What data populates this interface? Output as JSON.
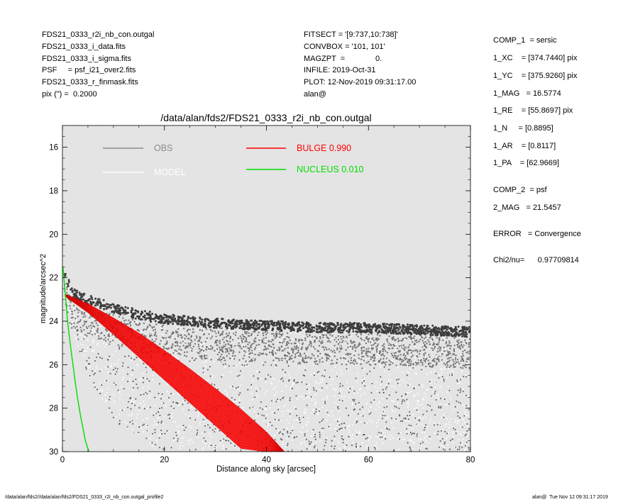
{
  "header_left": [
    "FDS21_0333_r2i_nb_con.outgal",
    "FDS21_0333_i_data.fits",
    "FDS21_0333_i_sigma.fits",
    "PSF     = psf_i21_over2.fits",
    "FDS21_0333_r_finmask.fits",
    "pix (\") =  0.2000"
  ],
  "header_mid": [
    "FITSECT = '[9:737,10:738]'",
    "CONVBOX = '101, 101'",
    "MAGZPT  =              0.",
    "INFILE: 2019-Oct-31",
    "PLOT: 12-Nov-2019 09:31:17.00",
    "alan@"
  ],
  "params": [
    "COMP_1  = sersic",
    "1_XC    = [374.7440] pix",
    "1_YC    = [375.9260] pix",
    "1_MAG   = 16.5774",
    "1_RE    = [55.8697] pix",
    "1_N     = [0.8895]",
    "1_AR    = [0.8117]",
    "1_PA    = [62.9669]",
    "COMP_2  = psf",
    "2_MAG   = 21.5457",
    "ERROR   = Convergence",
    "Chi2/nu=      0.97709814"
  ],
  "footer_left": "/data/alan/fds2//data/alan/fds2/FDS21_0333_r2i_nb_con.outgal_profile2",
  "footer_right": "alan@  Tue Nov 12 09:31:17 2019",
  "chart_data": {
    "type": "scatter",
    "title": "/data/alan/fds2/FDS21_0333_r2i_nb_con.outgal",
    "xlabel": "Distance along sky [arcsec]",
    "ylabel": "magnitude/arcsec^2",
    "xlim": [
      0,
      80
    ],
    "ylim": [
      30,
      15
    ],
    "y_inverted": true,
    "xticks": [
      0,
      20,
      40,
      60,
      80
    ],
    "yticks": [
      16,
      18,
      20,
      22,
      24,
      26,
      28,
      30
    ],
    "background": "#e4e4e4",
    "legend": [
      {
        "name": "OBS",
        "color": "#8c8c8c"
      },
      {
        "name": "MODEL",
        "color": "#ffffff"
      },
      {
        "name": "BULGE  0.990",
        "color": "#ff0000"
      },
      {
        "name": "NUCLEUS  0.010",
        "color": "#00dd00"
      }
    ],
    "series": [
      {
        "name": "OBS",
        "kind": "scatter",
        "color": "#3c3c3c",
        "description_points": {
          "upper_envelope": {
            "x": [
              0.3,
              2,
              5,
              10,
              15,
              20,
              30,
              40,
              50,
              60,
              70,
              80
            ],
            "y": [
              21.8,
              22.7,
              23.0,
              23.4,
              23.7,
              23.9,
              24.1,
              24.2,
              24.3,
              24.3,
              24.4,
              24.5
            ]
          },
          "lower_envelope": {
            "x": [
              0.3,
              2,
              5,
              10,
              15,
              20,
              30,
              40,
              50,
              60,
              70,
              80
            ],
            "y": [
              22.3,
              24.5,
              26.5,
              28.5,
              29.5,
              30.0,
              30.0,
              30.0,
              30.0,
              30.0,
              30.0,
              30.0
            ]
          }
        }
      },
      {
        "name": "BULGE",
        "kind": "band",
        "color": "#ff0000",
        "x": [
          0.5,
          5,
          10,
          15,
          20,
          25,
          30,
          35,
          40,
          43.5
        ],
        "y_upper": [
          22.75,
          23.2,
          23.85,
          24.55,
          25.35,
          26.2,
          27.1,
          28.05,
          29.1,
          30.0
        ],
        "y_lower": [
          22.85,
          23.6,
          24.6,
          25.65,
          26.7,
          27.75,
          28.8,
          29.85,
          30.0,
          30.0
        ]
      },
      {
        "name": "NUCLEUS",
        "kind": "line",
        "color": "#00dd00",
        "x": [
          0.1,
          0.5,
          1,
          1.5,
          2,
          2.5,
          3,
          3.5,
          4,
          4.5,
          5.2
        ],
        "y": [
          21.5,
          22.6,
          24.0,
          25.0,
          25.9,
          26.8,
          27.6,
          28.3,
          28.9,
          29.5,
          30.0
        ]
      }
    ]
  }
}
